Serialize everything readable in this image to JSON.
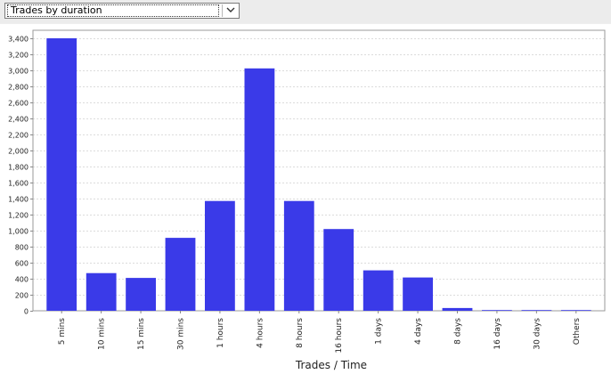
{
  "selector": {
    "value": "Trades by duration"
  },
  "chart_data": {
    "type": "bar",
    "title": "",
    "xlabel": "Trades / Time",
    "ylabel": "",
    "categories": [
      "5 mins",
      "10 mins",
      "15 mins",
      "30 mins",
      "1 hours",
      "4 hours",
      "8 hours",
      "16 hours",
      "1 days",
      "4 days",
      "8 days",
      "16 days",
      "30 days",
      "Others"
    ],
    "values": [
      3400,
      470,
      410,
      910,
      1370,
      3025,
      1370,
      1020,
      505,
      415,
      35,
      5,
      5,
      2
    ],
    "ylim": [
      0,
      3500
    ],
    "yticks": [
      0,
      200,
      400,
      600,
      800,
      1000,
      1200,
      1400,
      1600,
      1800,
      2000,
      2200,
      2400,
      2600,
      2800,
      3000,
      3200,
      3400
    ],
    "ytick_labels": [
      "0",
      "200",
      "400",
      "600",
      "800",
      "1,000",
      "1,200",
      "1,400",
      "1,600",
      "1,800",
      "2,000",
      "2,200",
      "2,400",
      "2,600",
      "2,800",
      "3,000",
      "3,200",
      "3,400"
    ],
    "grid": true,
    "bar_color": "#3a3ae8"
  }
}
